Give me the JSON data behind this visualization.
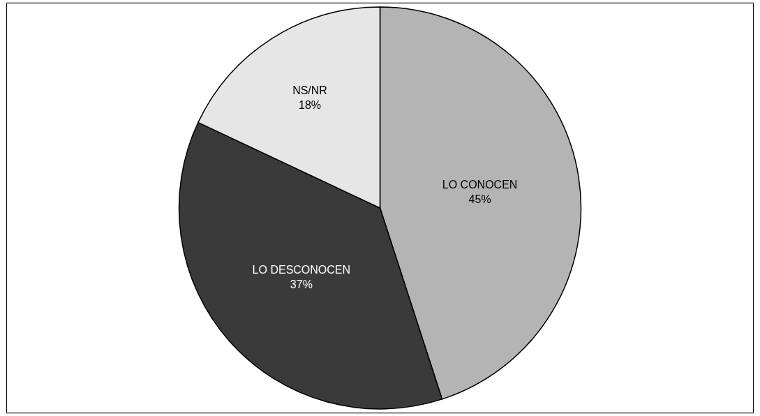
{
  "chart_data": {
    "type": "pie",
    "categories": [
      "LO CONOCEN",
      "LO DESCONOCEN",
      "NS/NR"
    ],
    "values": [
      45,
      37,
      18
    ],
    "value_labels": [
      "45%",
      "37%",
      "18%"
    ],
    "colors": [
      "#b4b4b4",
      "#3a3a3a",
      "#e6e6e6"
    ],
    "legend": false
  }
}
